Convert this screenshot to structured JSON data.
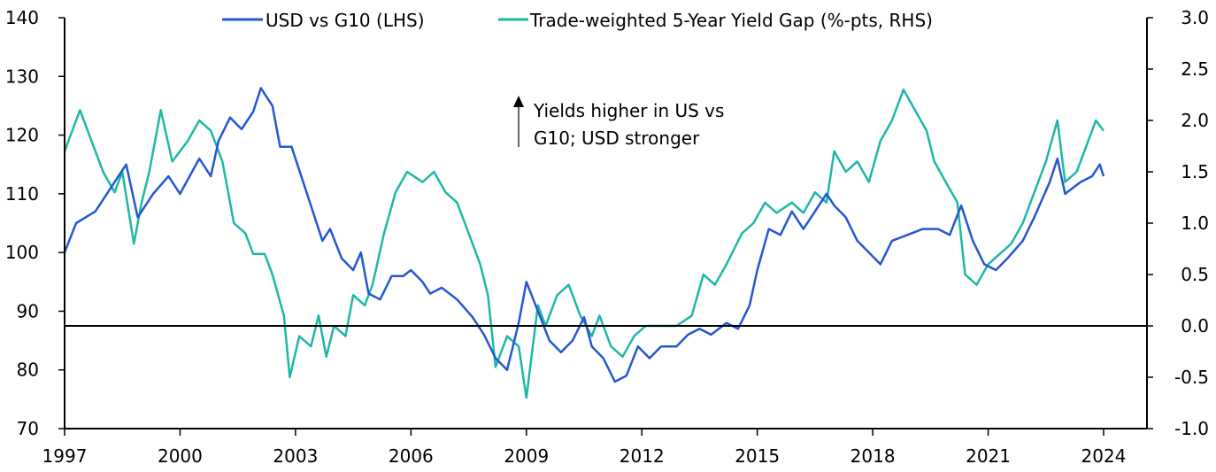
{
  "chart_data": {
    "type": "line",
    "title": "",
    "legend_position": "top",
    "annotation": [
      "Yields higher in US vs",
      "G10; USD stronger"
    ],
    "x_ticks": [
      "1997",
      "2000",
      "2003",
      "2006",
      "2009",
      "2012",
      "2015",
      "2018",
      "2021",
      "2024"
    ],
    "xlim": [
      1997,
      2024
    ],
    "left_axis": {
      "ylim": [
        70,
        140
      ],
      "ticks": [
        "70",
        "80",
        "90",
        "100",
        "110",
        "120",
        "130",
        "140"
      ]
    },
    "right_axis": {
      "ylim": [
        -1.0,
        3.0
      ],
      "ticks": [
        "-1.0",
        "-0.5",
        "0.0",
        "0.5",
        "1.0",
        "1.5",
        "2.0",
        "2.5",
        "3.0"
      ]
    },
    "reference_line": {
      "axis": "right",
      "value": 0.0
    },
    "series": [
      {
        "name": "USD vs G10 (LHS)",
        "axis": "left",
        "color": "#2457d1",
        "points": [
          [
            1997.0,
            100
          ],
          [
            1997.3,
            105
          ],
          [
            1997.8,
            107
          ],
          [
            1998.3,
            112
          ],
          [
            1998.6,
            115
          ],
          [
            1998.9,
            106
          ],
          [
            1999.3,
            110
          ],
          [
            1999.7,
            113
          ],
          [
            2000.0,
            110
          ],
          [
            2000.5,
            116
          ],
          [
            2000.8,
            113
          ],
          [
            2001.0,
            119
          ],
          [
            2001.3,
            123
          ],
          [
            2001.6,
            121
          ],
          [
            2001.9,
            124
          ],
          [
            2002.1,
            128
          ],
          [
            2002.4,
            125
          ],
          [
            2002.6,
            118
          ],
          [
            2002.9,
            118
          ],
          [
            2003.1,
            114
          ],
          [
            2003.4,
            108
          ],
          [
            2003.7,
            102
          ],
          [
            2003.9,
            104
          ],
          [
            2004.2,
            99
          ],
          [
            2004.5,
            97
          ],
          [
            2004.7,
            100
          ],
          [
            2004.9,
            93
          ],
          [
            2005.2,
            92
          ],
          [
            2005.5,
            96
          ],
          [
            2005.8,
            96
          ],
          [
            2006.0,
            97
          ],
          [
            2006.3,
            95
          ],
          [
            2006.5,
            93
          ],
          [
            2006.8,
            94
          ],
          [
            2007.2,
            92
          ],
          [
            2007.6,
            89
          ],
          [
            2007.9,
            86
          ],
          [
            2008.2,
            82
          ],
          [
            2008.5,
            80
          ],
          [
            2008.8,
            88
          ],
          [
            2009.0,
            95
          ],
          [
            2009.3,
            90
          ],
          [
            2009.6,
            85
          ],
          [
            2009.9,
            83
          ],
          [
            2010.2,
            85
          ],
          [
            2010.5,
            89
          ],
          [
            2010.7,
            84
          ],
          [
            2011.0,
            82
          ],
          [
            2011.3,
            78
          ],
          [
            2011.6,
            79
          ],
          [
            2011.9,
            84
          ],
          [
            2012.2,
            82
          ],
          [
            2012.5,
            84
          ],
          [
            2012.9,
            84
          ],
          [
            2013.2,
            86
          ],
          [
            2013.5,
            87
          ],
          [
            2013.8,
            86
          ],
          [
            2014.2,
            88
          ],
          [
            2014.5,
            87
          ],
          [
            2014.8,
            91
          ],
          [
            2015.0,
            97
          ],
          [
            2015.3,
            104
          ],
          [
            2015.6,
            103
          ],
          [
            2015.9,
            107
          ],
          [
            2016.2,
            104
          ],
          [
            2016.5,
            107
          ],
          [
            2016.8,
            110
          ],
          [
            2017.0,
            108
          ],
          [
            2017.3,
            106
          ],
          [
            2017.6,
            102
          ],
          [
            2017.9,
            100
          ],
          [
            2018.2,
            98
          ],
          [
            2018.5,
            102
          ],
          [
            2018.9,
            103
          ],
          [
            2019.3,
            104
          ],
          [
            2019.7,
            104
          ],
          [
            2020.0,
            103
          ],
          [
            2020.3,
            108
          ],
          [
            2020.6,
            102
          ],
          [
            2020.9,
            98
          ],
          [
            2021.2,
            97
          ],
          [
            2021.5,
            99
          ],
          [
            2021.9,
            102
          ],
          [
            2022.2,
            106
          ],
          [
            2022.6,
            112
          ],
          [
            2022.8,
            116
          ],
          [
            2023.0,
            110
          ],
          [
            2023.4,
            112
          ],
          [
            2023.7,
            113
          ],
          [
            2023.9,
            115
          ],
          [
            2024.0,
            113
          ]
        ]
      },
      {
        "name": "Trade-weighted 5-Year Yield Gap (%-pts, RHS)",
        "axis": "right",
        "color": "#1db8a6",
        "points": [
          [
            1997.0,
            1.7
          ],
          [
            1997.2,
            1.9
          ],
          [
            1997.4,
            2.1
          ],
          [
            1997.7,
            1.8
          ],
          [
            1998.0,
            1.5
          ],
          [
            1998.3,
            1.3
          ],
          [
            1998.5,
            1.5
          ],
          [
            1998.8,
            0.8
          ],
          [
            1999.0,
            1.2
          ],
          [
            1999.2,
            1.5
          ],
          [
            1999.5,
            2.1
          ],
          [
            1999.8,
            1.6
          ],
          [
            2000.2,
            1.8
          ],
          [
            2000.5,
            2.0
          ],
          [
            2000.8,
            1.9
          ],
          [
            2001.1,
            1.6
          ],
          [
            2001.4,
            1.0
          ],
          [
            2001.7,
            0.9
          ],
          [
            2001.9,
            0.7
          ],
          [
            2002.2,
            0.7
          ],
          [
            2002.4,
            0.5
          ],
          [
            2002.7,
            0.1
          ],
          [
            2002.85,
            -0.5
          ],
          [
            2003.1,
            -0.1
          ],
          [
            2003.4,
            -0.2
          ],
          [
            2003.6,
            0.1
          ],
          [
            2003.8,
            -0.3
          ],
          [
            2004.0,
            0.0
          ],
          [
            2004.3,
            -0.1
          ],
          [
            2004.5,
            0.3
          ],
          [
            2004.8,
            0.2
          ],
          [
            2005.0,
            0.4
          ],
          [
            2005.3,
            0.9
          ],
          [
            2005.6,
            1.3
          ],
          [
            2005.9,
            1.5
          ],
          [
            2006.3,
            1.4
          ],
          [
            2006.6,
            1.5
          ],
          [
            2006.9,
            1.3
          ],
          [
            2007.2,
            1.2
          ],
          [
            2007.5,
            0.9
          ],
          [
            2007.8,
            0.6
          ],
          [
            2008.0,
            0.3
          ],
          [
            2008.2,
            -0.4
          ],
          [
            2008.5,
            -0.1
          ],
          [
            2008.8,
            -0.2
          ],
          [
            2009.0,
            -0.7
          ],
          [
            2009.3,
            0.2
          ],
          [
            2009.5,
            0.0
          ],
          [
            2009.8,
            0.3
          ],
          [
            2010.1,
            0.4
          ],
          [
            2010.4,
            0.1
          ],
          [
            2010.7,
            -0.1
          ],
          [
            2010.9,
            0.1
          ],
          [
            2011.2,
            -0.2
          ],
          [
            2011.5,
            -0.3
          ],
          [
            2011.8,
            -0.1
          ],
          [
            2012.1,
            0.0
          ],
          [
            2012.5,
            0.0
          ],
          [
            2012.9,
            0.0
          ],
          [
            2013.3,
            0.1
          ],
          [
            2013.6,
            0.5
          ],
          [
            2013.9,
            0.4
          ],
          [
            2014.2,
            0.6
          ],
          [
            2014.6,
            0.9
          ],
          [
            2014.9,
            1.0
          ],
          [
            2015.2,
            1.2
          ],
          [
            2015.5,
            1.1
          ],
          [
            2015.9,
            1.2
          ],
          [
            2016.2,
            1.1
          ],
          [
            2016.5,
            1.3
          ],
          [
            2016.8,
            1.2
          ],
          [
            2017.0,
            1.7
          ],
          [
            2017.3,
            1.5
          ],
          [
            2017.6,
            1.6
          ],
          [
            2017.9,
            1.4
          ],
          [
            2018.2,
            1.8
          ],
          [
            2018.5,
            2.0
          ],
          [
            2018.8,
            2.3
          ],
          [
            2019.1,
            2.1
          ],
          [
            2019.4,
            1.9
          ],
          [
            2019.6,
            1.6
          ],
          [
            2019.9,
            1.4
          ],
          [
            2020.2,
            1.2
          ],
          [
            2020.4,
            0.5
          ],
          [
            2020.7,
            0.4
          ],
          [
            2021.0,
            0.6
          ],
          [
            2021.3,
            0.7
          ],
          [
            2021.6,
            0.8
          ],
          [
            2021.9,
            1.0
          ],
          [
            2022.2,
            1.3
          ],
          [
            2022.5,
            1.6
          ],
          [
            2022.8,
            2.0
          ],
          [
            2023.0,
            1.4
          ],
          [
            2023.3,
            1.5
          ],
          [
            2023.6,
            1.8
          ],
          [
            2023.8,
            2.0
          ],
          [
            2024.0,
            1.9
          ]
        ]
      }
    ]
  }
}
